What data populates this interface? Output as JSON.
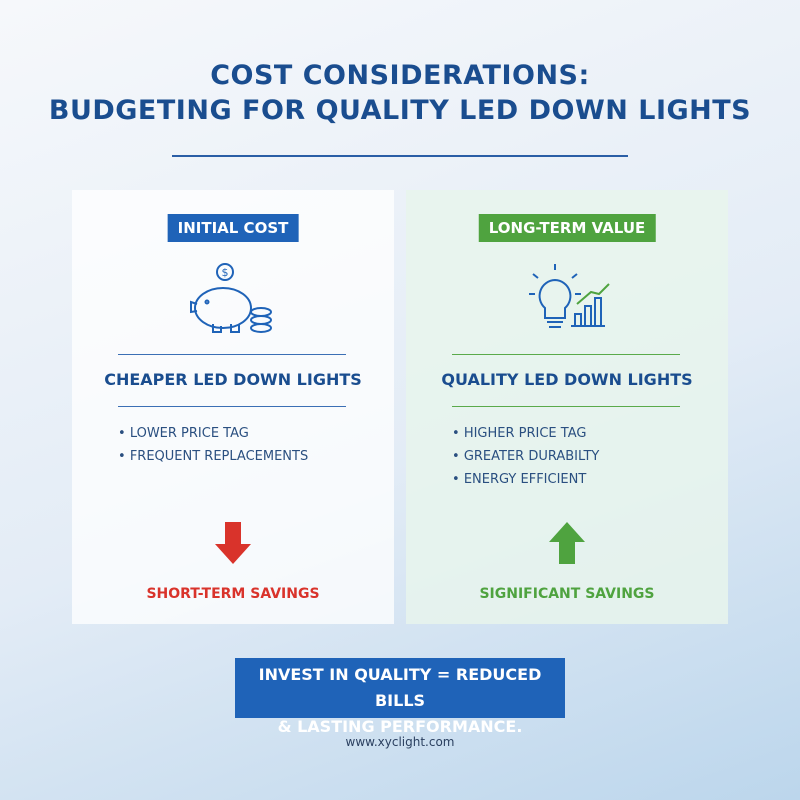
{
  "header": {
    "title_line1": "COST CONSIDERATIONS:",
    "title_line2": "BUDGETING FOR QUALITY LED DOWN LIGHTS"
  },
  "panels": [
    {
      "badge": "INITIAL COST",
      "heading": "CHEAPER LED DOWN LIGHTS",
      "items": [
        "LOWER PRICE TAG",
        "FREQUENT REPLACEMENTS"
      ],
      "result": "SHORT-TERM SAVINGS"
    },
    {
      "badge": "LONG-TERM VALUE",
      "heading": "QUALITY LED DOWN LIGHTS",
      "items": [
        "HIGHER PRICE TAG",
        "GREATER DURABILTY",
        "ENERGY EFFICIENT"
      ],
      "result": "SIGNIFICANT SAVINGS"
    }
  ],
  "footer": {
    "banner_line1": "INVEST IN QUALITY = REDUCED BILLS",
    "banner_line2": "& LASTING PERFORMANCE.",
    "url": "www.xyclight.com"
  }
}
